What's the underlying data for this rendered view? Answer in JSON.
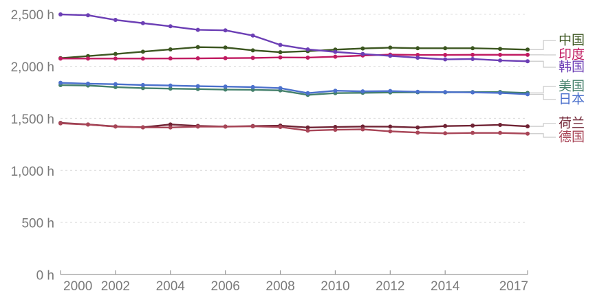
{
  "chart_data": {
    "type": "line",
    "title": "",
    "unit": "h",
    "x": [
      2000,
      2001,
      2002,
      2003,
      2004,
      2005,
      2006,
      2007,
      2008,
      2009,
      2010,
      2011,
      2012,
      2013,
      2014,
      2015,
      2016,
      2017
    ],
    "x_tick_years": [
      2000,
      2002,
      2004,
      2006,
      2008,
      2010,
      2012,
      2014,
      2017
    ],
    "x_tick_labels": [
      "2000",
      "2002",
      "2004",
      "2006",
      "2008",
      "2010",
      "2012",
      "2014",
      "2017"
    ],
    "y_ticks": [
      0,
      500,
      1000,
      1500,
      2000,
      2500
    ],
    "y_tick_labels": [
      "0 h",
      "500 h",
      "1,000 h",
      "1,500 h",
      "2,000 h",
      "2,500 h"
    ],
    "ylim": [
      0,
      2500
    ],
    "grid": "horizontal-dashed",
    "legend_position": "right-entity-labels",
    "series": [
      {
        "id": "china",
        "name": "中国",
        "color": "#3c5620",
        "label_y": 59,
        "values": [
          2078,
          2098,
          2118,
          2140,
          2162,
          2184,
          2180,
          2153,
          2135,
          2145,
          2160,
          2171,
          2179,
          2173,
          2173,
          2173,
          2167,
          2160
        ]
      },
      {
        "id": "india",
        "name": "印度",
        "color": "#c01a60",
        "label_y": 80,
        "values": [
          2074,
          2074,
          2074,
          2074,
          2075,
          2076,
          2078,
          2080,
          2085,
          2083,
          2092,
          2103,
          2112,
          2109,
          2109,
          2110,
          2110,
          2110
        ]
      },
      {
        "id": "korea",
        "name": "韩国",
        "color": "#6c3fb5",
        "label_y": 98,
        "values": [
          2498,
          2490,
          2445,
          2414,
          2384,
          2350,
          2345,
          2295,
          2205,
          2162,
          2138,
          2118,
          2100,
          2082,
          2066,
          2070,
          2056,
          2048
        ]
      },
      {
        "id": "usa",
        "name": "美国",
        "color": "#44806b",
        "label_y": 126,
        "values": [
          1819,
          1815,
          1800,
          1790,
          1785,
          1781,
          1776,
          1774,
          1768,
          1725,
          1742,
          1745,
          1748,
          1750,
          1750,
          1752,
          1753,
          1744
        ]
      },
      {
        "id": "japan",
        "name": "日本",
        "color": "#4b70cc",
        "label_y": 145,
        "values": [
          1841,
          1833,
          1828,
          1820,
          1815,
          1809,
          1805,
          1800,
          1790,
          1742,
          1765,
          1759,
          1762,
          1755,
          1752,
          1749,
          1744,
          1731
        ]
      },
      {
        "id": "netherlands",
        "name": "荷兰",
        "color": "#702334",
        "label_y": 180,
        "values": [
          1456,
          1441,
          1422,
          1414,
          1441,
          1427,
          1421,
          1426,
          1430,
          1412,
          1417,
          1421,
          1420,
          1412,
          1426,
          1430,
          1437,
          1423
        ]
      },
      {
        "id": "germany",
        "name": "德国",
        "color": "#a84557",
        "label_y": 200,
        "values": [
          1452,
          1440,
          1421,
          1413,
          1412,
          1420,
          1420,
          1423,
          1417,
          1382,
          1390,
          1394,
          1375,
          1363,
          1356,
          1360,
          1360,
          1353
        ]
      }
    ]
  },
  "styles": {
    "background": "#ffffff",
    "axis_text_color": "#7a7a7a",
    "grid_color": "#d9d9d9",
    "axis_line_color": "#9a9a9a",
    "leader_line_color": "#c9c9c9"
  }
}
